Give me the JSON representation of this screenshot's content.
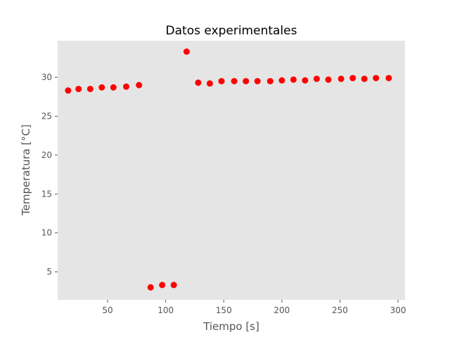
{
  "chart_data": {
    "type": "scatter",
    "title": "Datos experimentales",
    "xlabel": "Tiempo [s]",
    "ylabel": "Temperatura [°C]",
    "xlim": [
      7,
      306
    ],
    "ylim": [
      1.4,
      34.7
    ],
    "xticks": [
      50,
      100,
      150,
      200,
      250,
      300
    ],
    "yticks": [
      5,
      10,
      15,
      20,
      25,
      30
    ],
    "grid": false,
    "colors": {
      "marker": "#ff0000",
      "plot_background": "#e5e5e5",
      "figure_background": "#ffffff"
    },
    "points": [
      {
        "x": 16,
        "y": 28.3
      },
      {
        "x": 25,
        "y": 28.5
      },
      {
        "x": 35,
        "y": 28.5
      },
      {
        "x": 45,
        "y": 28.7
      },
      {
        "x": 55,
        "y": 28.7
      },
      {
        "x": 66,
        "y": 28.8
      },
      {
        "x": 77,
        "y": 29.0
      },
      {
        "x": 87,
        "y": 3.0
      },
      {
        "x": 97,
        "y": 3.3
      },
      {
        "x": 107,
        "y": 3.3
      },
      {
        "x": 118,
        "y": 33.3
      },
      {
        "x": 128,
        "y": 29.3
      },
      {
        "x": 138,
        "y": 29.2
      },
      {
        "x": 148,
        "y": 29.5
      },
      {
        "x": 159,
        "y": 29.5
      },
      {
        "x": 169,
        "y": 29.5
      },
      {
        "x": 179,
        "y": 29.5
      },
      {
        "x": 190,
        "y": 29.5
      },
      {
        "x": 200,
        "y": 29.6
      },
      {
        "x": 210,
        "y": 29.7
      },
      {
        "x": 220,
        "y": 29.6
      },
      {
        "x": 230,
        "y": 29.8
      },
      {
        "x": 240,
        "y": 29.7
      },
      {
        "x": 251,
        "y": 29.8
      },
      {
        "x": 261,
        "y": 29.9
      },
      {
        "x": 271,
        "y": 29.8
      },
      {
        "x": 281,
        "y": 29.9
      },
      {
        "x": 292,
        "y": 29.9
      }
    ]
  }
}
